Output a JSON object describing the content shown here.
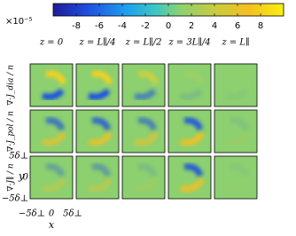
{
  "colorbar": {
    "multiplier": "×10⁻⁵",
    "lim": [
      -10,
      10
    ],
    "ticks": [
      -8,
      -6,
      -4,
      -2,
      0,
      2,
      4,
      6,
      8
    ]
  },
  "columns": [
    "z = 0",
    "z = L∥/4",
    "z = L∥/2",
    "z = 3L∥/4",
    "z = L∥"
  ],
  "rows": [
    "∇·J_dia / n",
    "∇·J_pol / n",
    "∇·J∥ / n"
  ],
  "y_axis": {
    "label": "y",
    "ticks": [
      "5δ⊥",
      "0",
      "−5δ⊥"
    ]
  },
  "x_axis": {
    "label": "x",
    "ticks": [
      "−5δ⊥",
      "0",
      "5δ⊥"
    ]
  }
}
